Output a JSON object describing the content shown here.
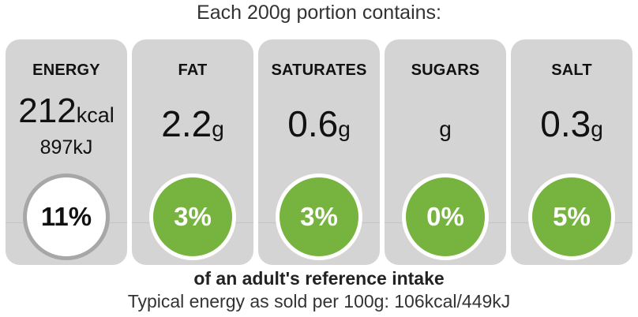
{
  "header": "Each 200g portion contains:",
  "nutrients": [
    {
      "name": "ENERGY",
      "value": "212",
      "unit": "kcal",
      "secondary": "897kJ",
      "percent": "11%"
    },
    {
      "name": "FAT",
      "value": "2.2",
      "unit": "g",
      "percent": "3%"
    },
    {
      "name": "SATURATES",
      "value": "0.6",
      "unit": "g",
      "percent": "3%"
    },
    {
      "name": "SUGARS",
      "value": "",
      "unit": "g",
      "percent": "0%"
    },
    {
      "name": "SALT",
      "value": "0.3",
      "unit": "g",
      "percent": "5%"
    }
  ],
  "footer": {
    "reference": "of an adult's reference intake",
    "typical": "Typical energy as sold per 100g: 106kcal/449kJ"
  },
  "colors": {
    "card_bg": "#d4d4d4",
    "green": "#77b43f",
    "white": "#ffffff",
    "ring_grey": "#a7a7a7"
  }
}
